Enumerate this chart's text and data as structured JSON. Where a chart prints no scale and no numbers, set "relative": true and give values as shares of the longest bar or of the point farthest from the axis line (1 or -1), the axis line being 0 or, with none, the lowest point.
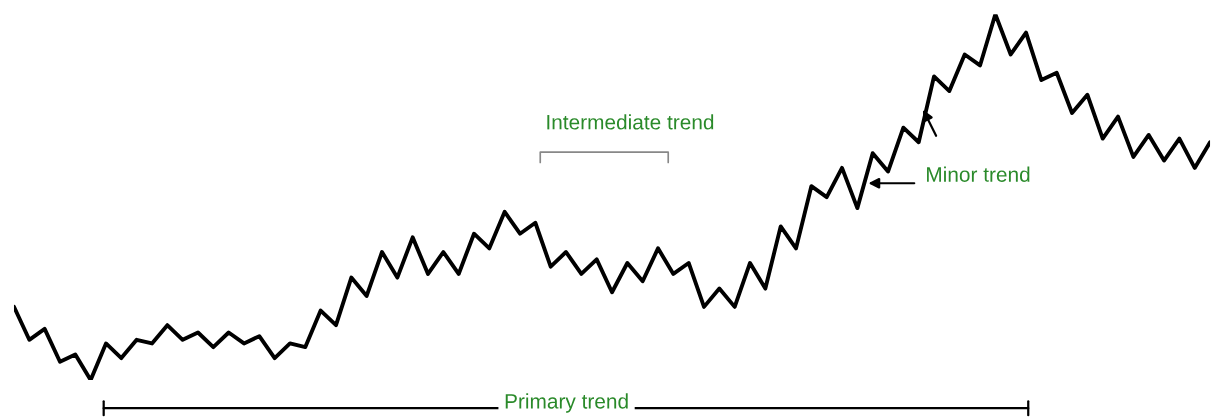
{
  "chart_data": {
    "type": "line",
    "relative": true,
    "marker": "none",
    "line_style": "solid",
    "categories": [
      null,
      null,
      null,
      null,
      null,
      null,
      null,
      null,
      null,
      null,
      null,
      null,
      null,
      null,
      null,
      null,
      null,
      null,
      null,
      null,
      null,
      null,
      null,
      null,
      null,
      null,
      null,
      null,
      null,
      null,
      null,
      null,
      null,
      null,
      null,
      null,
      null,
      null,
      null,
      null,
      null,
      null,
      null,
      null,
      null,
      null,
      null,
      null,
      null,
      null,
      null,
      null,
      null,
      null,
      null,
      null,
      null,
      null,
      null,
      null,
      null,
      null,
      null,
      null,
      null,
      null,
      null,
      null,
      null,
      null,
      null,
      null,
      null,
      null,
      null,
      null,
      null,
      null,
      null
    ],
    "series": [
      {
        "color": "#000000",
        "values": [
          0.2,
          0.11,
          0.14,
          0.05,
          0.07,
          0,
          0.1,
          0.06,
          0.11,
          0.1,
          0.15,
          0.11,
          0.13,
          0.09,
          0.13,
          0.1,
          0.12,
          0.06,
          0.1,
          0.09,
          0.19,
          0.15,
          0.28,
          0.23,
          0.35,
          0.28,
          0.39,
          0.29,
          0.35,
          0.29,
          0.4,
          0.36,
          0.46,
          0.4,
          0.43,
          0.31,
          0.35,
          0.29,
          0.33,
          0.24,
          0.32,
          0.27,
          0.36,
          0.29,
          0.32,
          0.2,
          0.25,
          0.2,
          0.32,
          0.25,
          0.42,
          0.36,
          0.53,
          0.5,
          0.58,
          0.47,
          0.62,
          0.57,
          0.69,
          0.65,
          0.83,
          0.79,
          0.89,
          0.86,
          1,
          0.89,
          0.95,
          0.82,
          0.84,
          0.73,
          0.78,
          0.66,
          0.72,
          0.61,
          0.67,
          0.6,
          0.66,
          0.58,
          0.65
        ]
      }
    ],
    "annotations": [
      "Intermediate trend",
      "Minor trend",
      "Primary trend"
    ]
  }
}
